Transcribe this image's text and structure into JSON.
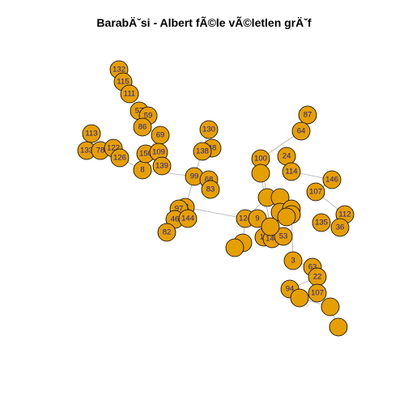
{
  "title": "BarabÄˇsi - Albert fÃ©le vÃ©letlen grÄˇf",
  "colors": {
    "vertex_fill": "#E69F00",
    "vertex_border": "#000000",
    "label": "#1a1aa0",
    "edge": "#b0b0b0"
  },
  "graph": {
    "visible_labels": [
      "132",
      "115",
      "111",
      "57",
      "59",
      "86",
      "69",
      "113",
      "133",
      "78",
      "122",
      "126",
      "8",
      "150",
      "109",
      "139",
      "130",
      "48",
      "138",
      "99",
      "68",
      "83",
      "91",
      "97",
      "46",
      "82",
      "144",
      "87",
      "64",
      "100",
      "24",
      "114",
      "146",
      "107",
      "112",
      "36",
      "135",
      "124",
      "9",
      "16",
      "140",
      "53",
      "3",
      "63",
      "22",
      "94",
      "107"
    ]
  }
}
